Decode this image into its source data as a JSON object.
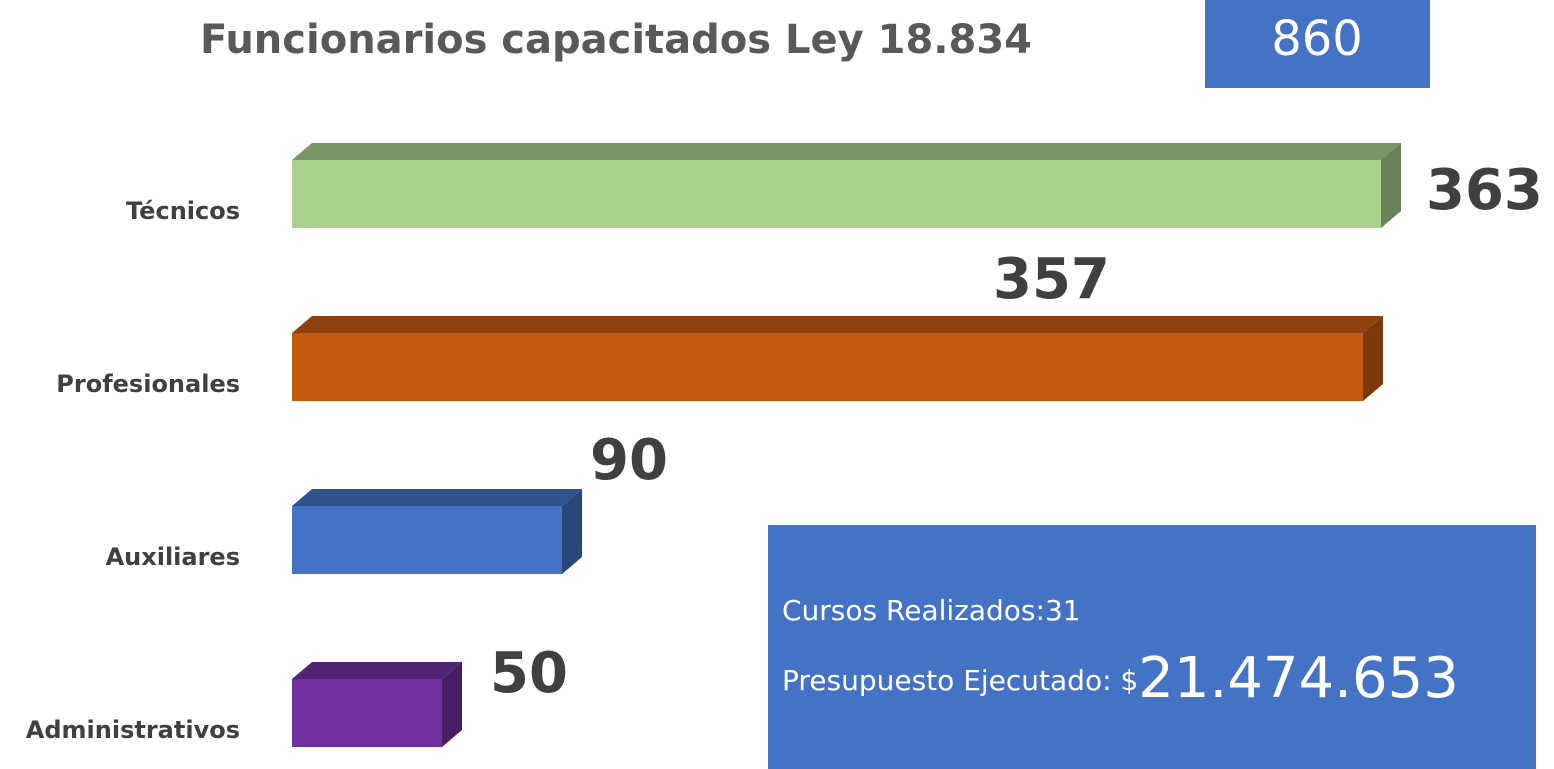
{
  "chart_data": {
    "type": "bar",
    "orientation": "horizontal",
    "title": "Funcionarios capacitados Ley 18.834",
    "categories": [
      "Técnicos",
      "Profesionales",
      "Auxiliares",
      "Administrativos"
    ],
    "values": [
      363,
      357,
      90,
      50
    ],
    "colors": [
      "#a9d18e",
      "#c55a11",
      "#4472c4",
      "#7030a0"
    ],
    "xlim": [
      0,
      400
    ],
    "total": "860",
    "info": {
      "courses": "Cursos Realizados:31",
      "budget_label": "Presupuesto Ejecutado: $",
      "budget_value": "21.474.653"
    }
  }
}
